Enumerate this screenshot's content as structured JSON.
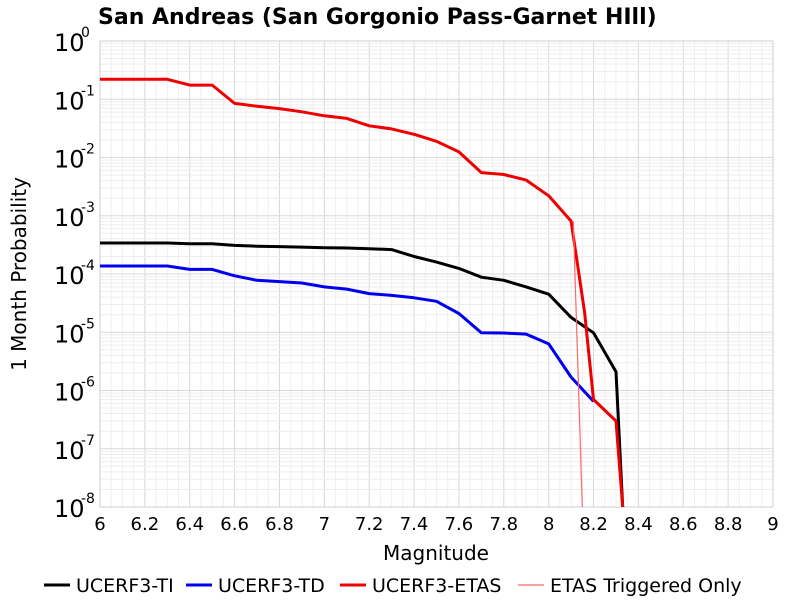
{
  "chart_data": {
    "type": "line",
    "title": "San Andreas (San Gorgonio Pass-Garnet HIll)",
    "xlabel": "Magnitude",
    "ylabel": "1 Month Probability",
    "xlim": [
      6,
      9
    ],
    "ylim": [
      1e-08,
      1
    ],
    "y_scale": "log",
    "grid": true,
    "legend_placement": "bottom",
    "x_ticks": [
      "6",
      "6.2",
      "6.4",
      "6.6",
      "6.8",
      "7",
      "7.2",
      "7.4",
      "7.6",
      "7.8",
      "8",
      "8.2",
      "8.4",
      "8.6",
      "8.8",
      "9"
    ],
    "y_ticks": [
      {
        "value": 1,
        "base": "10",
        "exp": "0"
      },
      {
        "value": 0.1,
        "base": "10",
        "exp": "-1"
      },
      {
        "value": 0.01,
        "base": "10",
        "exp": "-2"
      },
      {
        "value": 0.001,
        "base": "10",
        "exp": "-3"
      },
      {
        "value": 0.0001,
        "base": "10",
        "exp": "-4"
      },
      {
        "value": 1e-05,
        "base": "10",
        "exp": "-5"
      },
      {
        "value": 1e-06,
        "base": "10",
        "exp": "-6"
      },
      {
        "value": 1e-07,
        "base": "10",
        "exp": "-7"
      },
      {
        "value": 1e-08,
        "base": "10",
        "exp": "-8"
      }
    ],
    "series": [
      {
        "name": "UCERF3-TI",
        "color": "#000000",
        "width": 3,
        "x": [
          6.0,
          6.1,
          6.2,
          6.3,
          6.4,
          6.5,
          6.6,
          6.7,
          6.8,
          6.9,
          7.0,
          7.1,
          7.2,
          7.3,
          7.4,
          7.5,
          7.6,
          7.7,
          7.8,
          7.9,
          8.0,
          8.1,
          8.2,
          8.3,
          8.33
        ],
        "y": [
          0.00034,
          0.00034,
          0.00034,
          0.00034,
          0.00033,
          0.00033,
          0.00031,
          0.0003,
          0.000295,
          0.00029,
          0.000283,
          0.00028,
          0.000272,
          0.000262,
          0.0002,
          0.00016,
          0.000125,
          8.8e-05,
          7.8e-05,
          6e-05,
          4.5e-05,
          1.8e-05,
          9.8e-06,
          2.1e-06,
          1e-08
        ]
      },
      {
        "name": "UCERF3-TD",
        "color": "#0000ee",
        "width": 3,
        "x": [
          6.0,
          6.1,
          6.2,
          6.3,
          6.4,
          6.5,
          6.6,
          6.7,
          6.8,
          6.9,
          7.0,
          7.1,
          7.2,
          7.3,
          7.4,
          7.5,
          7.6,
          7.7,
          7.8,
          7.9,
          8.0,
          8.1,
          8.2
        ],
        "y": [
          0.000137,
          0.000137,
          0.000137,
          0.000137,
          0.00012,
          0.00012,
          9.3e-05,
          7.8e-05,
          7.4e-05,
          7e-05,
          6e-05,
          5.5e-05,
          4.6e-05,
          4.3e-05,
          3.9e-05,
          3.4e-05,
          2.1e-05,
          9.8e-06,
          9.7e-06,
          9.3e-06,
          6.3e-06,
          1.7e-06,
          6.5e-07
        ]
      },
      {
        "name": "UCERF3-ETAS",
        "color": "#ee0000",
        "width": 3,
        "x": [
          6.0,
          6.1,
          6.2,
          6.3,
          6.4,
          6.5,
          6.6,
          6.7,
          6.8,
          6.9,
          7.0,
          7.1,
          7.2,
          7.3,
          7.4,
          7.5,
          7.6,
          7.7,
          7.8,
          7.9,
          8.0,
          8.1,
          8.16,
          8.2,
          8.3,
          8.33
        ],
        "y": [
          0.22,
          0.22,
          0.22,
          0.22,
          0.175,
          0.175,
          0.085,
          0.076,
          0.069,
          0.061,
          0.052,
          0.047,
          0.035,
          0.031,
          0.025,
          0.019,
          0.0125,
          0.0055,
          0.0051,
          0.0041,
          0.0022,
          0.00081,
          2.2e-05,
          7e-07,
          3e-07,
          1e-08
        ]
      },
      {
        "name": "ETAS Triggered Only",
        "color": "#ff6666",
        "width": 1.2,
        "x": [
          8.11,
          8.15
        ],
        "y": [
          0.0008,
          1e-08
        ]
      }
    ]
  }
}
